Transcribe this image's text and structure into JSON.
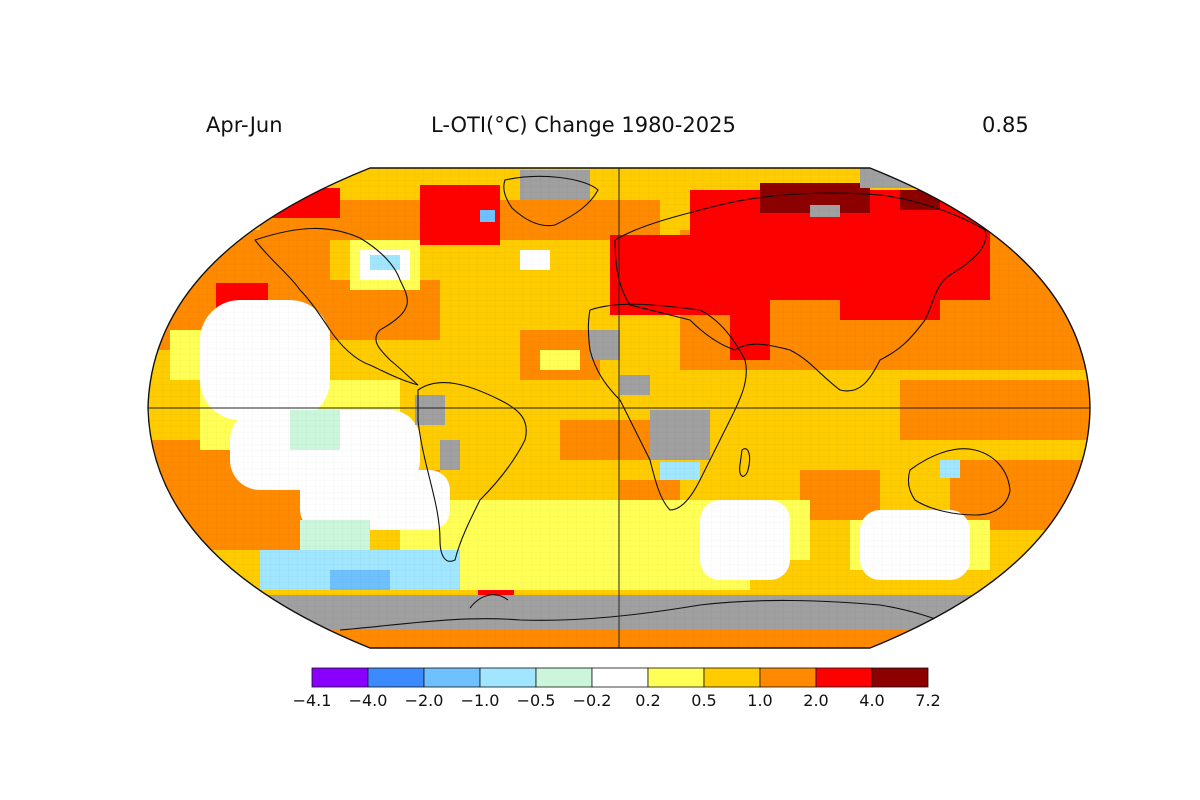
{
  "header": {
    "season": "Apr-Jun",
    "title": "L-OTI(°C) Change 1980-2025",
    "global_mean": "0.85"
  },
  "map": {
    "projection": "Robinson",
    "center_meridian_deg": 0,
    "missing_data_color": "#a0a0a0"
  },
  "colorbar": {
    "tick_labels": [
      "−4.1",
      "−4.0",
      "−2.0",
      "−1.0",
      "−0.5",
      "−0.2",
      "0.2",
      "0.5",
      "1.0",
      "2.0",
      "4.0",
      "7.2"
    ],
    "colors": [
      "#8a00ff",
      "#3b8bff",
      "#6fc0ff",
      "#a0e6ff",
      "#ccf6dc",
      "#ffffff",
      "#ffff55",
      "#ffcc00",
      "#ff8a00",
      "#ff0000",
      "#8c0000"
    ]
  }
}
